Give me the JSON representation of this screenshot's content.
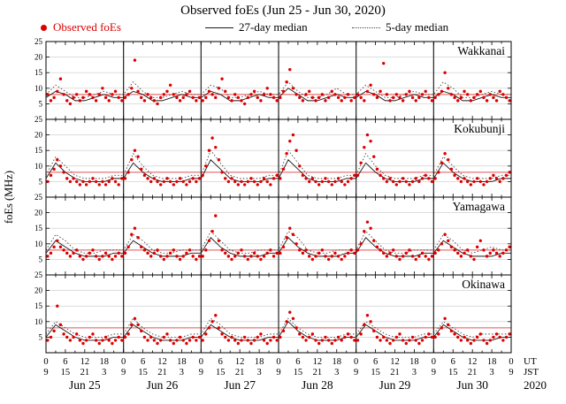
{
  "title": "Observed foEs (Jun 25 - Jun 30, 2020)",
  "legend": {
    "observed": "Observed foEs",
    "median27": "27-day median",
    "median5": "5-day median"
  },
  "colors": {
    "observed": "#dd0000",
    "median27": "#1a1a1a",
    "median5": "#444444",
    "ref_line": "#e05050",
    "grid": "#c9c9c9",
    "day_line": "#222222"
  },
  "ref_line_mhz": 8,
  "axes": {
    "ylabel": "foEs (MHz)",
    "y_max": 25,
    "y_ticks": [
      5,
      10,
      15,
      20,
      25
    ],
    "hours_total": 144,
    "ut_tick_labels": [
      "0",
      "6",
      "12",
      "18"
    ],
    "jst_tick_labels": [
      "9",
      "15",
      "21",
      "3"
    ],
    "final_ut_label": "0",
    "final_jst_label": "9",
    "ut_suffix": "UT",
    "jst_suffix": "JST",
    "year": "2020",
    "day_labels": [
      "Jun 25",
      "Jun 26",
      "Jun 27",
      "Jun 28",
      "Jun 29",
      "Jun 30"
    ]
  },
  "chart_data": {
    "type": "scatter",
    "title": "Observed foEs (Jun 25 - Jun 30, 2020)",
    "ylabel": "foEs (MHz)",
    "ylim": [
      0,
      25
    ],
    "x_unit": "hours UT from 2020-06-25 00:00",
    "stations": [
      {
        "name": "Wakkanai",
        "observed_step_h": 1,
        "observed": [
          8,
          6,
          7,
          9,
          13,
          8,
          6,
          5,
          7,
          8,
          6,
          7,
          9,
          8,
          7,
          6,
          8,
          10,
          7,
          6,
          8,
          9,
          7,
          6,
          7,
          8,
          10,
          19,
          9,
          7,
          6,
          8,
          7,
          6,
          5,
          7,
          8,
          9,
          11,
          8,
          7,
          6,
          7,
          8,
          9,
          7,
          6,
          7,
          6,
          7,
          9,
          8,
          7,
          10,
          13,
          9,
          7,
          6,
          8,
          7,
          6,
          5,
          7,
          8,
          9,
          7,
          6,
          8,
          10,
          8,
          7,
          6,
          7,
          9,
          12,
          16,
          10,
          8,
          7,
          6,
          8,
          9,
          7,
          6,
          7,
          8,
          6,
          7,
          9,
          8,
          7,
          6,
          7,
          8,
          6,
          7,
          8,
          7,
          6,
          9,
          11,
          8,
          7,
          9,
          18,
          8,
          6,
          7,
          8,
          7,
          6,
          8,
          9,
          7,
          6,
          7,
          8,
          9,
          7,
          6,
          7,
          8,
          9,
          15,
          10,
          8,
          7,
          6,
          7,
          9,
          8,
          6,
          7,
          8,
          9,
          7,
          6,
          8,
          7,
          6,
          9,
          8,
          7,
          6
        ],
        "median_step_h": 3,
        "median27": [
          7,
          9,
          8,
          6,
          6,
          7,
          8,
          7,
          7,
          9,
          8,
          6,
          6,
          7,
          8,
          7,
          7,
          9,
          8,
          6,
          6,
          7,
          8,
          7,
          7,
          10,
          8,
          6,
          6,
          7,
          8,
          7,
          7,
          9,
          8,
          6,
          6,
          7,
          8,
          7,
          7,
          9,
          8,
          6,
          6,
          7,
          8,
          7,
          7
        ],
        "median5": [
          8,
          11,
          9,
          7,
          7,
          8,
          9,
          8,
          8,
          12,
          9,
          7,
          7,
          8,
          9,
          8,
          8,
          11,
          10,
          7,
          7,
          8,
          9,
          8,
          8,
          12,
          9,
          7,
          7,
          8,
          10,
          8,
          8,
          11,
          9,
          7,
          7,
          8,
          9,
          8,
          8,
          12,
          10,
          7,
          7,
          8,
          9,
          8,
          8
        ]
      },
      {
        "name": "Kokubunji",
        "observed_step_h": 1,
        "observed": [
          5,
          7,
          9,
          12,
          10,
          8,
          6,
          5,
          6,
          5,
          4,
          5,
          4,
          5,
          6,
          5,
          4,
          5,
          4,
          5,
          6,
          5,
          4,
          6,
          6,
          8,
          12,
          15,
          13,
          9,
          7,
          6,
          5,
          6,
          5,
          4,
          5,
          6,
          5,
          4,
          5,
          6,
          5,
          4,
          5,
          6,
          5,
          6,
          7,
          10,
          15,
          19,
          16,
          12,
          8,
          6,
          5,
          6,
          5,
          4,
          5,
          4,
          5,
          6,
          5,
          4,
          5,
          6,
          5,
          4,
          6,
          7,
          6,
          9,
          14,
          18,
          20,
          15,
          10,
          7,
          6,
          5,
          6,
          5,
          4,
          5,
          6,
          5,
          4,
          5,
          6,
          5,
          4,
          5,
          6,
          7,
          7,
          11,
          16,
          20,
          18,
          13,
          9,
          7,
          6,
          5,
          6,
          5,
          4,
          5,
          6,
          5,
          4,
          5,
          6,
          5,
          6,
          7,
          6,
          5,
          6,
          8,
          11,
          14,
          12,
          9,
          7,
          6,
          5,
          6,
          5,
          4,
          5,
          6,
          5,
          4,
          5,
          6,
          7,
          6,
          5,
          6,
          7,
          8
        ],
        "median_step_h": 3,
        "median27": [
          6,
          11,
          8,
          6,
          5,
          5,
          5,
          6,
          6,
          11,
          8,
          6,
          5,
          5,
          5,
          6,
          6,
          12,
          9,
          6,
          5,
          5,
          5,
          6,
          6,
          12,
          9,
          6,
          5,
          5,
          5,
          6,
          6,
          11,
          8,
          6,
          5,
          5,
          5,
          6,
          6,
          11,
          8,
          6,
          5,
          5,
          5,
          6,
          6
        ],
        "median5": [
          7,
          13,
          10,
          7,
          6,
          6,
          6,
          7,
          7,
          14,
          10,
          7,
          6,
          6,
          6,
          7,
          7,
          15,
          11,
          7,
          6,
          6,
          6,
          7,
          7,
          15,
          11,
          7,
          6,
          6,
          6,
          7,
          7,
          14,
          10,
          7,
          6,
          6,
          6,
          7,
          7,
          13,
          10,
          7,
          6,
          6,
          6,
          7,
          7
        ]
      },
      {
        "name": "Yamagawa",
        "observed_step_h": 1,
        "observed": [
          6,
          7,
          9,
          11,
          9,
          8,
          7,
          6,
          7,
          8,
          6,
          5,
          6,
          7,
          8,
          6,
          5,
          6,
          7,
          6,
          5,
          6,
          7,
          6,
          7,
          9,
          13,
          15,
          12,
          9,
          8,
          7,
          6,
          7,
          8,
          6,
          5,
          6,
          7,
          8,
          6,
          5,
          6,
          7,
          8,
          6,
          5,
          6,
          6,
          8,
          11,
          14,
          19,
          11,
          8,
          7,
          6,
          5,
          6,
          7,
          8,
          6,
          5,
          6,
          7,
          6,
          5,
          6,
          7,
          8,
          6,
          7,
          7,
          9,
          12,
          15,
          13,
          10,
          8,
          7,
          8,
          6,
          5,
          6,
          7,
          8,
          6,
          5,
          6,
          7,
          6,
          5,
          6,
          7,
          8,
          7,
          8,
          10,
          14,
          17,
          15,
          11,
          9,
          8,
          7,
          6,
          7,
          8,
          6,
          5,
          6,
          7,
          8,
          6,
          5,
          6,
          7,
          6,
          5,
          6,
          7,
          8,
          10,
          13,
          11,
          9,
          8,
          7,
          6,
          7,
          8,
          6,
          5,
          9,
          11,
          8,
          6,
          7,
          8,
          7,
          6,
          7,
          8,
          9
        ],
        "median_step_h": 3,
        "median27": [
          7,
          11,
          9,
          7,
          6,
          6,
          6,
          7,
          7,
          11,
          9,
          7,
          6,
          6,
          6,
          7,
          7,
          12,
          9,
          7,
          6,
          6,
          6,
          7,
          7,
          12,
          9,
          7,
          6,
          6,
          6,
          7,
          7,
          12,
          9,
          7,
          6,
          6,
          6,
          7,
          7,
          11,
          9,
          7,
          6,
          6,
          6,
          7,
          7
        ],
        "median5": [
          8,
          13,
          11,
          8,
          7,
          7,
          8,
          8,
          8,
          13,
          11,
          8,
          7,
          7,
          8,
          8,
          8,
          14,
          11,
          8,
          7,
          7,
          8,
          8,
          8,
          14,
          12,
          8,
          7,
          7,
          8,
          8,
          8,
          14,
          11,
          8,
          7,
          7,
          8,
          8,
          8,
          13,
          11,
          8,
          7,
          8,
          9,
          8,
          8
        ]
      },
      {
        "name": "Okinawa",
        "observed_step_h": 1,
        "observed": [
          4,
          5,
          7,
          15,
          9,
          6,
          5,
          4,
          5,
          6,
          4,
          3,
          4,
          5,
          6,
          4,
          3,
          4,
          5,
          4,
          3,
          4,
          5,
          4,
          5,
          6,
          9,
          11,
          9,
          7,
          5,
          4,
          5,
          4,
          3,
          4,
          5,
          6,
          4,
          3,
          4,
          5,
          4,
          3,
          4,
          5,
          4,
          5,
          4,
          6,
          8,
          10,
          12,
          8,
          6,
          5,
          4,
          5,
          4,
          3,
          4,
          5,
          4,
          3,
          4,
          5,
          6,
          4,
          3,
          4,
          5,
          4,
          5,
          7,
          10,
          13,
          11,
          8,
          6,
          5,
          4,
          5,
          6,
          4,
          3,
          4,
          5,
          4,
          3,
          4,
          5,
          4,
          5,
          6,
          5,
          4,
          4,
          6,
          9,
          12,
          10,
          7,
          5,
          4,
          5,
          4,
          3,
          4,
          5,
          6,
          4,
          3,
          4,
          5,
          4,
          3,
          4,
          5,
          6,
          5,
          5,
          6,
          8,
          11,
          9,
          7,
          6,
          5,
          4,
          5,
          4,
          3,
          4,
          5,
          6,
          4,
          3,
          4,
          5,
          6,
          5,
          4,
          5,
          6
        ],
        "median_step_h": 3,
        "median27": [
          5,
          9,
          7,
          5,
          4,
          4,
          4,
          5,
          5,
          9,
          7,
          5,
          4,
          4,
          4,
          5,
          5,
          9,
          7,
          5,
          4,
          4,
          4,
          5,
          5,
          10,
          7,
          5,
          4,
          4,
          4,
          5,
          5,
          9,
          7,
          5,
          4,
          4,
          4,
          5,
          5,
          9,
          7,
          5,
          4,
          4,
          4,
          5,
          5
        ],
        "median5": [
          6,
          10,
          8,
          6,
          5,
          5,
          5,
          6,
          6,
          11,
          8,
          6,
          5,
          5,
          5,
          6,
          6,
          11,
          9,
          6,
          5,
          5,
          5,
          6,
          6,
          11,
          8,
          6,
          5,
          5,
          5,
          6,
          6,
          10,
          8,
          6,
          5,
          5,
          5,
          6,
          6,
          10,
          8,
          6,
          5,
          6,
          6,
          6,
          6
        ]
      }
    ]
  }
}
